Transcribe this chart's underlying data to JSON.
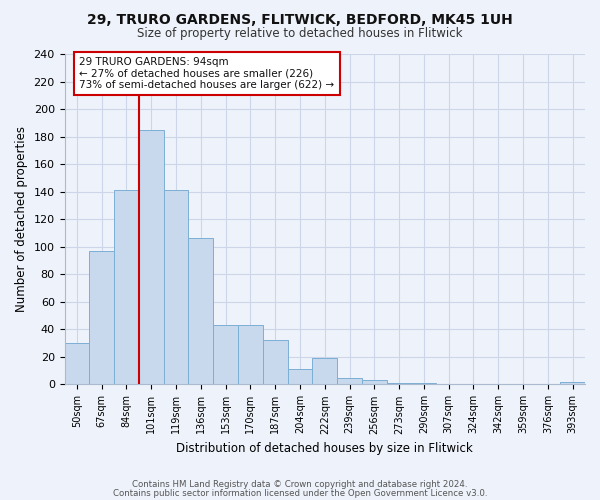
{
  "title": "29, TRURO GARDENS, FLITWICK, BEDFORD, MK45 1UH",
  "subtitle": "Size of property relative to detached houses in Flitwick",
  "xlabel": "Distribution of detached houses by size in Flitwick",
  "ylabel": "Number of detached properties",
  "bar_labels": [
    "50sqm",
    "67sqm",
    "84sqm",
    "101sqm",
    "119sqm",
    "136sqm",
    "153sqm",
    "170sqm",
    "187sqm",
    "204sqm",
    "222sqm",
    "239sqm",
    "256sqm",
    "273sqm",
    "290sqm",
    "307sqm",
    "324sqm",
    "342sqm",
    "359sqm",
    "376sqm",
    "393sqm"
  ],
  "bar_values": [
    30,
    97,
    141,
    185,
    141,
    106,
    43,
    43,
    32,
    11,
    19,
    5,
    3,
    1,
    1,
    0,
    0,
    0,
    0,
    0,
    2
  ],
  "bar_color": "#c8d9ee",
  "bar_edge_color": "#7bafd4",
  "ylim": [
    0,
    240
  ],
  "yticks": [
    0,
    20,
    40,
    60,
    80,
    100,
    120,
    140,
    160,
    180,
    200,
    220,
    240
  ],
  "annotation_title": "29 TRURO GARDENS: 94sqm",
  "annotation_line1": "← 27% of detached houses are smaller (226)",
  "annotation_line2": "73% of semi-detached houses are larger (622) →",
  "vline_bar_index": 3,
  "vline_color": "#cc0000",
  "annotation_box_color": "#ffffff",
  "annotation_box_edge": "#cc0000",
  "footer_line1": "Contains HM Land Registry data © Crown copyright and database right 2024.",
  "footer_line2": "Contains public sector information licensed under the Open Government Licence v3.0.",
  "background_color": "#eef2fa",
  "grid_color": "#ccd6e8",
  "spine_color": "#aabbd0"
}
